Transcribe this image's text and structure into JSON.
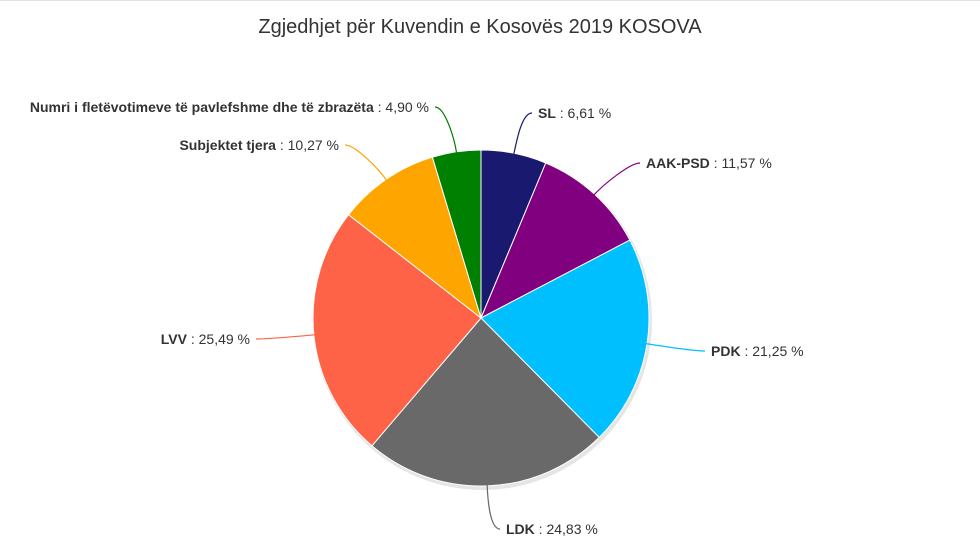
{
  "chart_data": {
    "type": "pie",
    "title": "Zgjedhjet për Kuvendin e Kosovës 2019 KOSOVA",
    "slices": [
      {
        "name": "SL",
        "value": 6.61,
        "label": "6,61 %",
        "color": "#191970"
      },
      {
        "name": "AAK-PSD",
        "value": 11.57,
        "label": "11,57 %",
        "color": "#800080"
      },
      {
        "name": "PDK",
        "value": 21.25,
        "label": "21,25 %",
        "color": "#00BFFF"
      },
      {
        "name": "LDK",
        "value": 24.83,
        "label": "24,83 %",
        "color": "#696969"
      },
      {
        "name": "LVV",
        "value": 25.49,
        "label": "25,49 %",
        "color": "#FF6347"
      },
      {
        "name": "Subjektet tjera",
        "value": 10.27,
        "label": "10,27 %",
        "color": "#FFA500"
      },
      {
        "name": "Numri i fletëvotimeve të pavlefshme dhe të zbrazëta",
        "value": 4.9,
        "label": "4,90 %",
        "color": "#008000"
      }
    ]
  }
}
